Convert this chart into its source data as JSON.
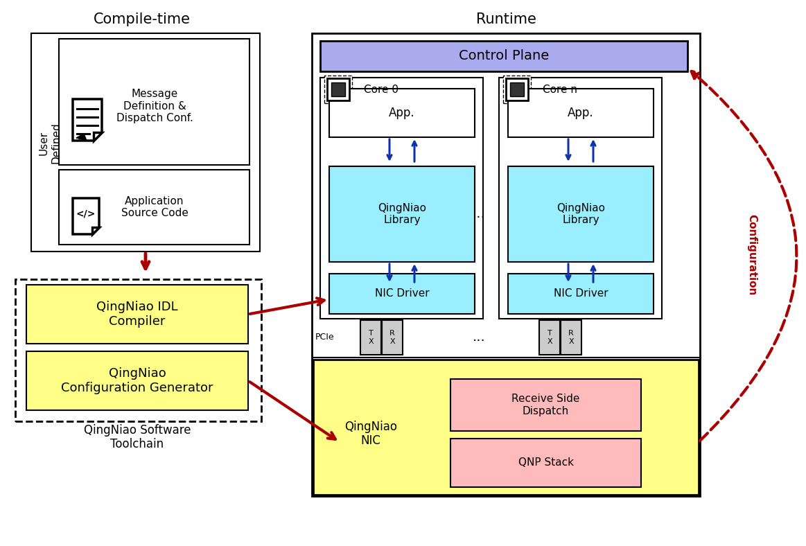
{
  "compile_time_label": "Compile-time",
  "runtime_label": "Runtime",
  "user_defined_label": "User\nDefined",
  "msg_def_label": "Message\nDefinition &\nDispatch Conf.",
  "app_source_label": "Application\nSource Code",
  "idl_compiler_label": "QingNiao IDL\nCompiler",
  "config_gen_label": "QingNiao\nConfiguration Generator",
  "toolchain_label": "QingNiao Software\nToolchain",
  "control_plane_label": "Control Plane",
  "core0_label": "Core 0",
  "coren_label": "Core n",
  "app_label": "App.",
  "lib_label": "QingNiao\nLibrary",
  "nic_driver_label": "NIC Driver",
  "nic_label": "QingNiao\nNIC",
  "rsd_label": "Receive Side\nDispatch",
  "qnp_label": "QNP Stack",
  "pcie_label": "PCIe",
  "dots_label": "...",
  "config_label": "Configuration",
  "yellow": "#FFFF88",
  "cyan": "#99EEFF",
  "purple": "#AAAAEE",
  "pink": "#FFBBBB",
  "white": "#FFFFFF",
  "dark_red": "#AA0000",
  "dark_blue": "#1133AA",
  "black": "#000000",
  "light_gray": "#CCCCCC",
  "bg": "#FFFFFF"
}
